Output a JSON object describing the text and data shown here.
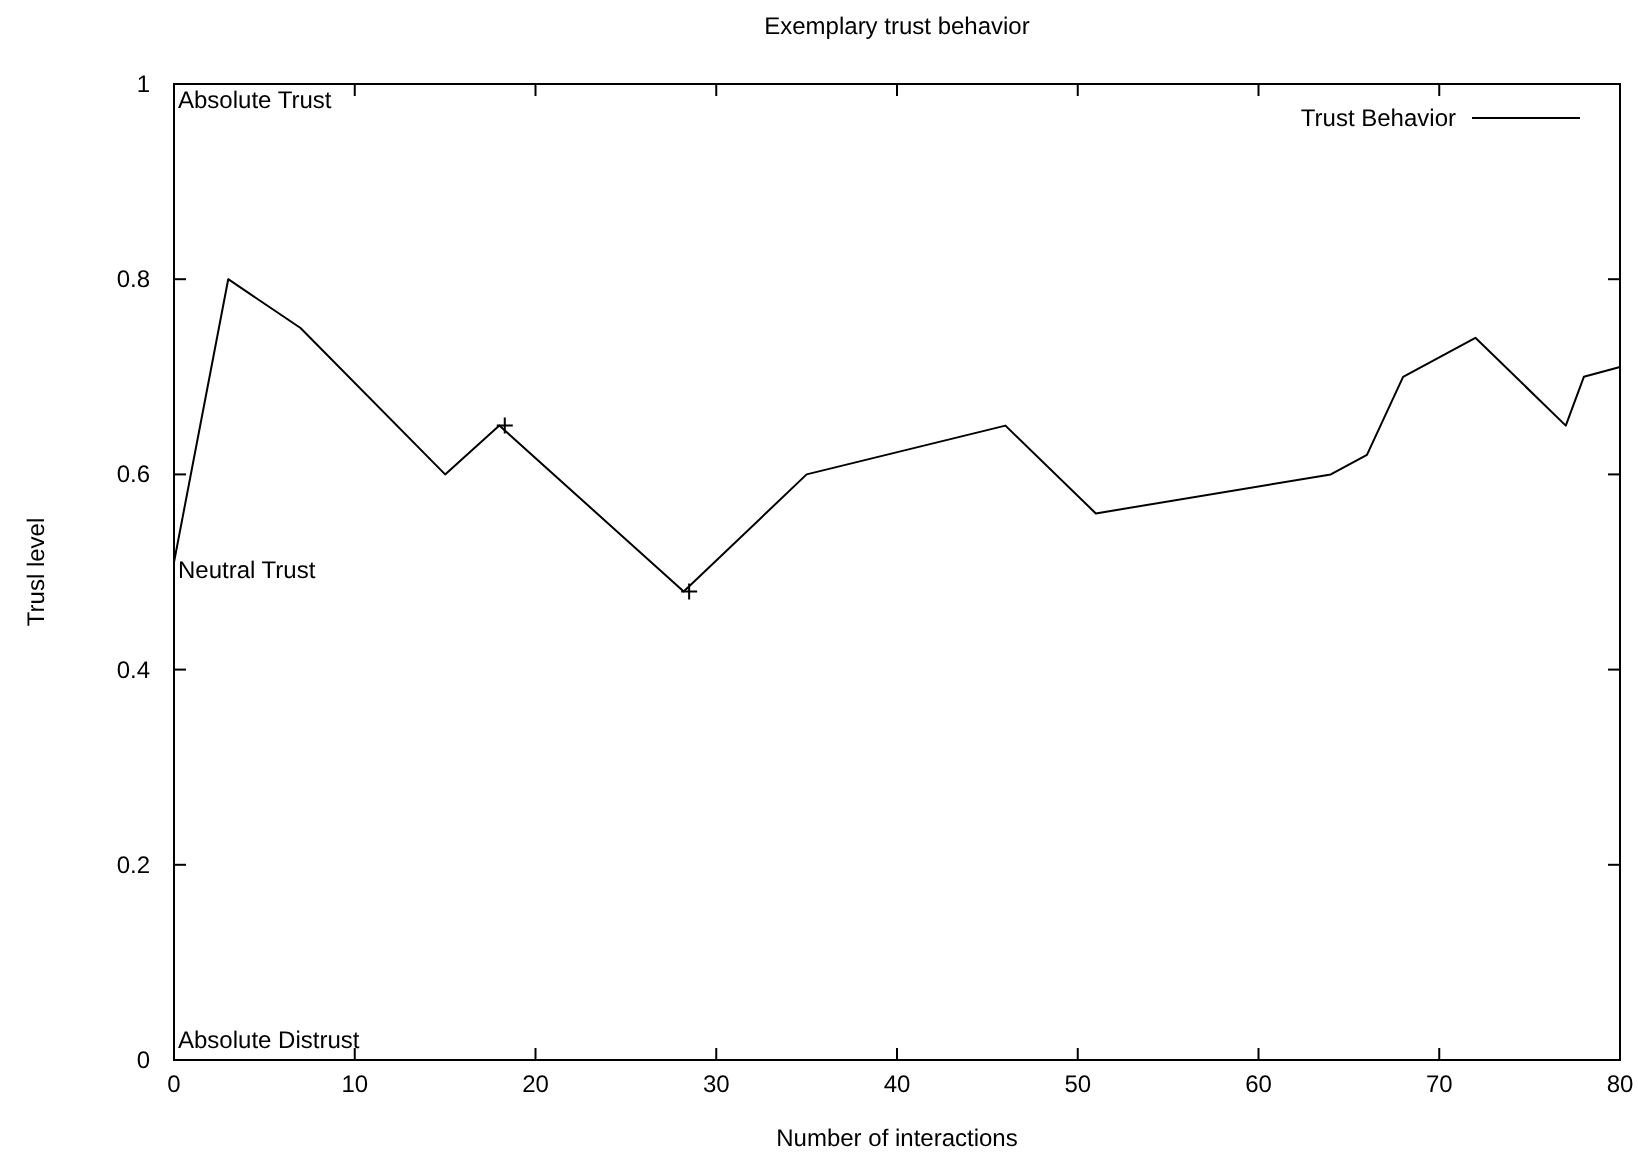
{
  "chart_data": {
    "type": "line",
    "title": "Exemplary trust behavior",
    "xlabel": "Number of interactions",
    "ylabel": "Trusl level",
    "xlim": [
      0,
      80
    ],
    "xticks": [
      0,
      10,
      20,
      30,
      40,
      50,
      60,
      70,
      80
    ],
    "ylim": [
      0,
      1
    ],
    "yticks": [
      0,
      0.2,
      0.4,
      0.6,
      0.8,
      1
    ],
    "legend": "top right",
    "grid": false,
    "series": [
      {
        "name": "Trust Behavior",
        "color": "#000000",
        "marker": "none",
        "line_style": "solid",
        "x": [
          0,
          3,
          7,
          15,
          18,
          28.2,
          35,
          46,
          51,
          64,
          66,
          68,
          72,
          77,
          78,
          80
        ],
        "values": [
          0.51,
          0.8,
          0.75,
          0.6,
          0.65,
          0.48,
          0.6,
          0.65,
          0.56,
          0.6,
          0.62,
          0.7,
          0.74,
          0.65,
          0.7,
          0.71
        ]
      },
      {
        "type": "scatter",
        "color": "#000000",
        "marker": "cross",
        "x": [
          18.3,
          28.5
        ],
        "values": [
          0.65,
          0.48
        ]
      }
    ],
    "annotations": [
      "Absolute Trust",
      "Neutral Trust",
      "Absolute Distrust"
    ]
  }
}
